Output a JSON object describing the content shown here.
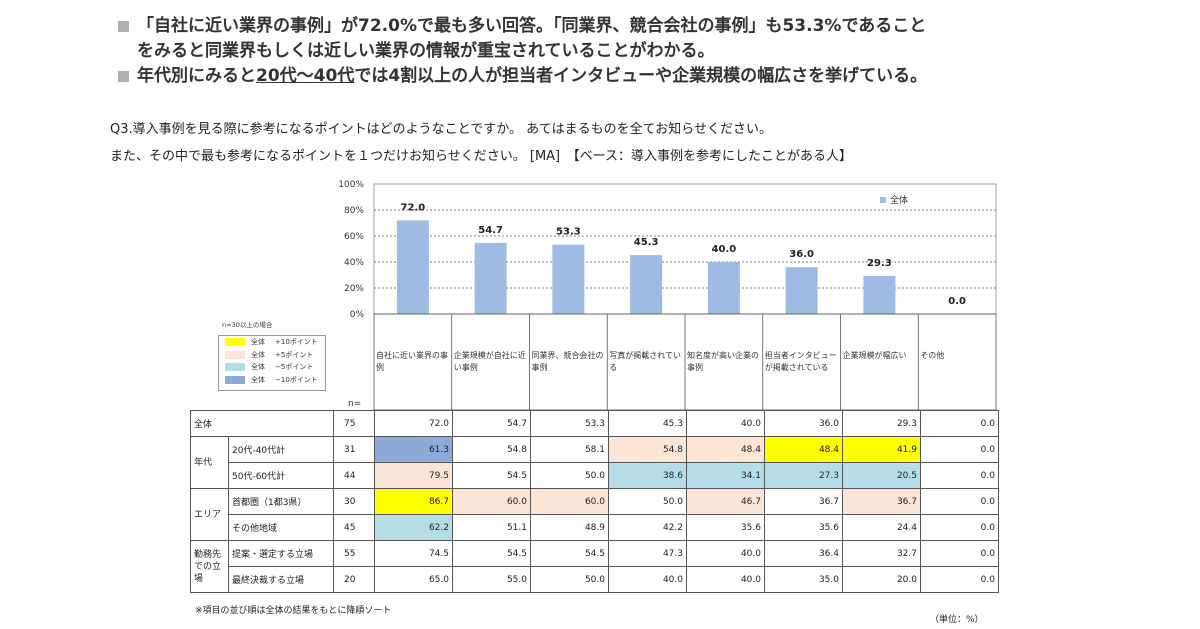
{
  "bullets": [
    {
      "text": "「自社に近い業界の事例」が72.0%で最も多い回答。「同業界、競合会社の事例」も53.3%であること",
      "cont": "をみると同業界もしくは近しい業界の情報が重宝されていることがわかる。"
    },
    {
      "pre": "年代別にみると",
      "underline": "20代～40代",
      "post": "では4割以上の人が担当者インタビューや企業規模の幅広さを挙げている。"
    }
  ],
  "question_line1": "Q3.導入事例を見る際に参考になるポイントはどのようなことですか。 あてはまるものを全てお知らせください。",
  "question_line2": "また、その中で最も参考になるポイントを１つだけお知らせください。 [MA]　【ベース：導入事例を参考にしたことがある人】",
  "chart_data": {
    "type": "bar",
    "categories": [
      "自社に近い業界の事例",
      "企業規模が自社に近い事例",
      "同業界、競合会社の事例",
      "写真が掲載されている",
      "知名度が高い企業の事例",
      "担当者インタビューが掲載されている",
      "企業規模が幅広い",
      "その他"
    ],
    "series": [
      {
        "name": "全体",
        "values": [
          72.0,
          54.7,
          53.3,
          45.3,
          40.0,
          36.0,
          29.3,
          0.0
        ]
      }
    ],
    "ylim": [
      0,
      100
    ],
    "yticks": [
      "0%",
      "20%",
      "40%",
      "60%",
      "80%",
      "100%"
    ],
    "data_labels": [
      "72.0",
      "54.7",
      "53.3",
      "45.3",
      "40.0",
      "36.0",
      "29.3",
      "0.0"
    ],
    "bar_color": "#9dbbe3",
    "legend_placement": "top-right",
    "grid": true
  },
  "legend_note": "n=30以上の場合",
  "highlight_legend": [
    {
      "label": "全体",
      "desc": "+10ポイント",
      "color": "#ffff00"
    },
    {
      "label": "全体",
      "desc": "+5ポイント",
      "color": "#fbe5d6"
    },
    {
      "label": "全体",
      "desc": "−5ポイント",
      "color": "#b4dde6"
    },
    {
      "label": "全体",
      "desc": "−10ポイント",
      "color": "#8eaad8"
    }
  ],
  "n_header": "n=",
  "table": [
    {
      "group": "全体",
      "sub": "",
      "n": "75",
      "values": [
        "72.0",
        "54.7",
        "53.3",
        "45.3",
        "40.0",
        "36.0",
        "29.3",
        "0.0"
      ],
      "hl": [
        "",
        "",
        "",
        "",
        "",
        "",
        "",
        ""
      ]
    },
    {
      "group": "年代",
      "sub": "20代-40代計",
      "n": "31",
      "values": [
        "61.3",
        "54.8",
        "58.1",
        "54.8",
        "48.4",
        "48.4",
        "41.9",
        "0.0"
      ],
      "hl": [
        "#8eaad8",
        "",
        "",
        "#fbe5d6",
        "#fbe5d6",
        "#ffff00",
        "#ffff00",
        ""
      ]
    },
    {
      "group": "",
      "sub": "50代-60代計",
      "n": "44",
      "values": [
        "79.5",
        "54.5",
        "50.0",
        "38.6",
        "34.1",
        "27.3",
        "20.5",
        "0.0"
      ],
      "hl": [
        "#fbe5d6",
        "",
        "",
        "#b4dde6",
        "#b4dde6",
        "#b4dde6",
        "#b4dde6",
        ""
      ]
    },
    {
      "group": "エリア",
      "sub": "首都圏（1都3県）",
      "n": "30",
      "values": [
        "86.7",
        "60.0",
        "60.0",
        "50.0",
        "46.7",
        "36.7",
        "36.7",
        "0.0"
      ],
      "hl": [
        "#ffff00",
        "#fbe5d6",
        "#fbe5d6",
        "",
        "#fbe5d6",
        "",
        "#fbe5d6",
        ""
      ]
    },
    {
      "group": "",
      "sub": "その他地域",
      "n": "45",
      "values": [
        "62.2",
        "51.1",
        "48.9",
        "42.2",
        "35.6",
        "35.6",
        "24.4",
        "0.0"
      ],
      "hl": [
        "#b4dde6",
        "",
        "",
        "",
        "",
        "",
        "",
        ""
      ]
    },
    {
      "group": "勤務先での立場",
      "sub": "提案・選定する立場",
      "n": "55",
      "values": [
        "74.5",
        "54.5",
        "54.5",
        "47.3",
        "40.0",
        "36.4",
        "32.7",
        "0.0"
      ],
      "hl": [
        "",
        "",
        "",
        "",
        "",
        "",
        "",
        ""
      ]
    },
    {
      "group": "",
      "sub": "最終決裁する立場",
      "n": "20",
      "values": [
        "65.0",
        "55.0",
        "50.0",
        "40.0",
        "40.0",
        "35.0",
        "20.0",
        "0.0"
      ],
      "hl": [
        "",
        "",
        "",
        "",
        "",
        "",
        "",
        ""
      ]
    }
  ],
  "footnote": "※項目の並び順は全体の結果をもとに降順ソート",
  "unit": "（単位：%）"
}
